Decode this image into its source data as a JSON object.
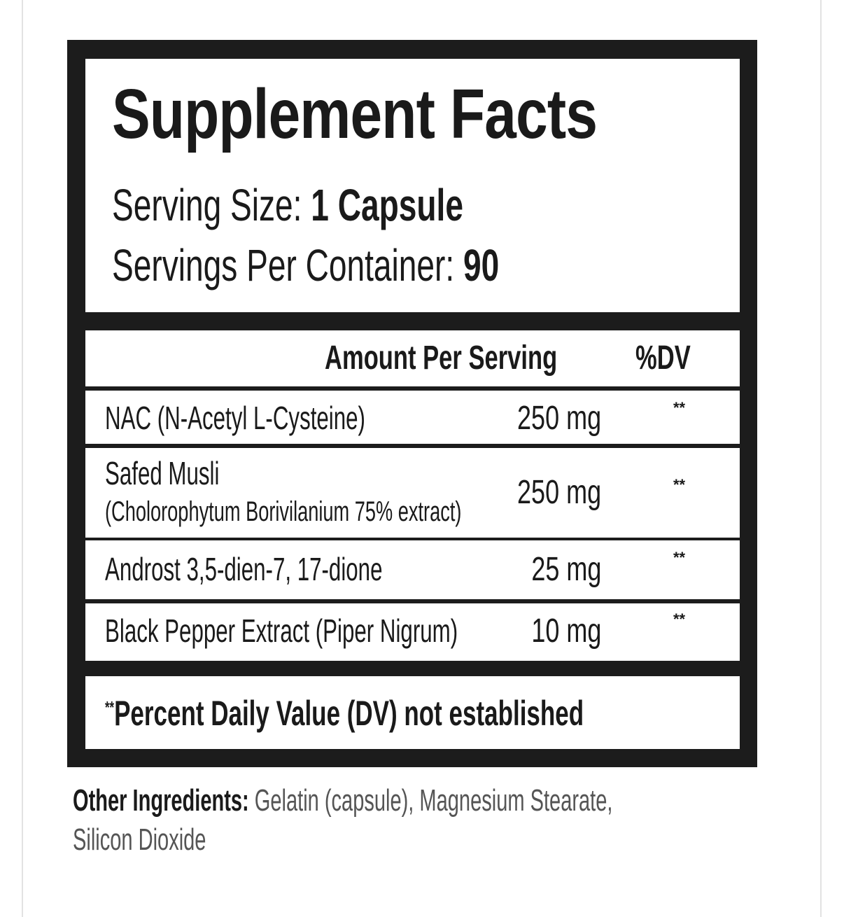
{
  "label": {
    "title": "Supplement Facts",
    "serving_size_label": "Serving Size:",
    "serving_size_value": "1 Capsule",
    "servings_per_container_label": "Servings Per Container:",
    "servings_per_container_value": "90",
    "header": {
      "amount": "Amount Per Serving",
      "dv": "%DV"
    },
    "rows": [
      {
        "name": "NAC (N-Acetyl L-Cysteine)",
        "sub": "",
        "amount": "250 mg",
        "dv": "**"
      },
      {
        "name": "Safed Musli",
        "sub": "(Cholorophytum Borivilanium 75% extract)",
        "amount": "250 mg",
        "dv": "**"
      },
      {
        "name": "Androst 3,5-dien-7, 17-dione",
        "sub": "",
        "amount": "25 mg",
        "dv": "**"
      },
      {
        "name": "Black Pepper Extract (Piper Nigrum)",
        "sub": "",
        "amount": "10 mg",
        "dv": "**"
      }
    ],
    "footnote_mark": "**",
    "footnote": "Percent Daily Value (DV) not established"
  },
  "other_ingredients": {
    "label": "Other Ingredients:",
    "line1": "Gelatin (capsule), Magnesium Stearate,",
    "line2": "Silicon Dioxide"
  }
}
